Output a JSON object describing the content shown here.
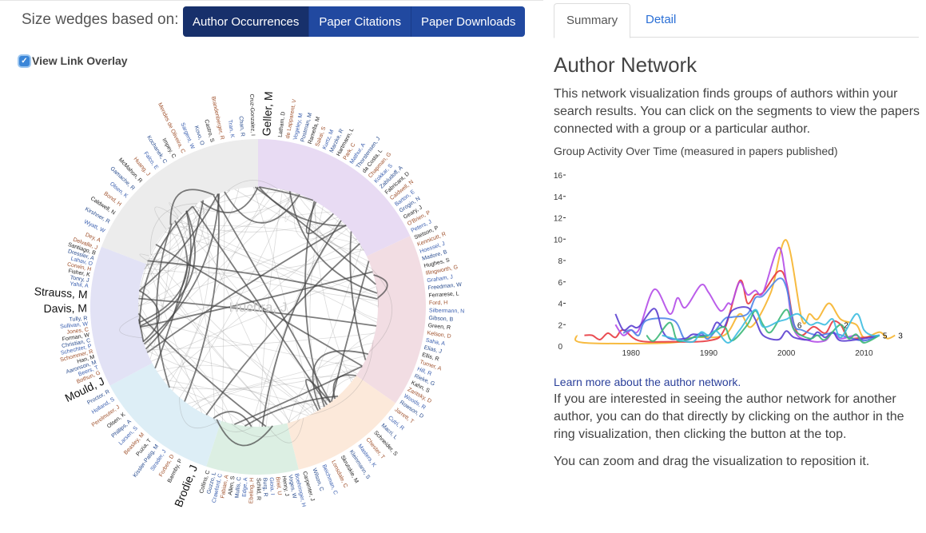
{
  "controls": {
    "size_label": "Size wedges based on:",
    "buttons": [
      {
        "label": "Author Occurrences",
        "active": true
      },
      {
        "label": "Paper Citations",
        "active": false
      },
      {
        "label": "Paper Downloads",
        "active": false
      }
    ],
    "overlay_label": "View Link Overlay",
    "overlay_checked": true,
    "check_glyph": "✓"
  },
  "ring": {
    "center_label": "Huchra, J",
    "groups": [
      {
        "color": "#e8dbf3",
        "start": 0,
        "end": 65,
        "authors": [
          "Geller, M",
          "Latham, D",
          "de Lapparent, V",
          "Vogeley, M",
          "Postman, M",
          "Ramella, M",
          "Sakai, S",
          "Kurtz, M",
          "Marzke, R",
          "Hartmann, L",
          "Park, C",
          "Mathur, A",
          "Thorstensen, J",
          "da Costa, L",
          "Chapman, G",
          "Kokkar, S",
          "Zabludoff, A",
          "Fabricant, D",
          "Caldwell, N",
          "Barton, E",
          "Grogin, N",
          "Geary, J",
          "O'Brien, P",
          "Peters, J"
        ],
        "big": [
          "Geller, M"
        ]
      },
      {
        "color": "#f2dde3",
        "start": 65,
        "end": 125,
        "authors": [
          "Stetson, P",
          "Kennicutt, R",
          "Hoessel, J",
          "Madore, B",
          "Hughes, S",
          "Illingworth, G",
          "Graham, J",
          "Freedman, W",
          "Ferrarese, L",
          "Ford, H",
          "Silbermann, N",
          "Gibson, B",
          "Green, R",
          "Kelson, D",
          "Saha, A",
          "Elias, J",
          "Ellis, R",
          "Turner, A",
          "Hill, R",
          "Rieke, G",
          "Kahn, S",
          "Zaritsky, D",
          "Woods, R",
          "Rowson, D"
        ],
        "big": []
      },
      {
        "color": "#fce9da",
        "start": 125,
        "end": 166,
        "authors": [
          "Jarrett, T",
          "Cutri, R",
          "Macri, L",
          "Schneider, S",
          "Chester, T",
          "Masters, K",
          "Kleinmann, S",
          "Skrutskie, M",
          "Lonsdale, C",
          "Beichman, C",
          "Wilson, C",
          "Carpenter, J"
        ],
        "big": []
      },
      {
        "color": "#dcefe3",
        "start": 166,
        "end": 198,
        "authors": [
          "Boehringer, H",
          "Voges, W",
          "Henry, J",
          "Briel, U",
          "Gioia, I",
          "Burg, R",
          "Schild, R",
          "Ebeling, H",
          "Edge, A",
          "Mullis, C",
          "Allen, S",
          "Fabian, A",
          "Crawford, C",
          "Guzzo, L",
          "Collins, C"
        ],
        "big": []
      },
      {
        "color": "#ddeef6",
        "start": 198,
        "end": 242,
        "authors": [
          "Brodie, J",
          "Barmby, P",
          "Forbes, D",
          "Strader, J",
          "Kissler-Patig, M",
          "Puzia, T",
          "Beasley, M",
          "Larsen, S",
          "Phillips, A",
          "Olsen, K",
          "Perelmuter, J",
          "Holland, S",
          "Proctor, R"
        ],
        "big": [
          "Brodie, J"
        ]
      },
      {
        "color": "#e2e2f5",
        "start": 242,
        "end": 291,
        "authors": [
          "Mould, J",
          "Bothun, G",
          "Beers, T",
          "Aaronson, M",
          "Han, M",
          "Schommer, R",
          "Schechter, P",
          "Christian, C",
          "Forman, W",
          "Jones, C",
          "Sullivan, W",
          "Tully, R",
          "Davis, M",
          "Strauss, M",
          "Yahil, A",
          "Tonry, J",
          "Fisher, K",
          "Corwin, H",
          "Lahav, O",
          "Dressler, A",
          "Santiago, B",
          "Delvalle, J"
        ],
        "big": [
          "Mould, J",
          "Davis, M",
          "Strauss, M"
        ]
      },
      {
        "color": "#ececec",
        "start": 291,
        "end": 360,
        "authors": [
          "Dey, A",
          "Wyatt, W",
          "Kirshner, R",
          "Caldwell, N",
          "Bond, H",
          "Olsen, K",
          "Gamache, R",
          "McMahon, R",
          "Huang, J",
          "Falco, E",
          "Kochanek, C",
          "Impey, C",
          "Mendes de Oliveira, C",
          "Sargent, W",
          "Kovo, O",
          "Castro, S",
          "Brandenberger, R",
          "Tran, K",
          "Chan, R",
          "Cruz-Gonzalez, I"
        ],
        "big": []
      }
    ]
  },
  "panel": {
    "tabs": [
      {
        "label": "Summary",
        "active": true
      },
      {
        "label": "Detail",
        "active": false
      }
    ],
    "title": "Author Network",
    "intro": "This network visualization finds groups of authors within your search results. You can click on the segments to view the papers connected with a group or a particular author.",
    "chart_caption": "Group Activity Over Time (measured in papers published)",
    "learn_link": "Learn more about the author network.",
    "more_text": "If you are interested in seeing the author network for another author, you can do that directly by clicking on the author in the ring visualization, then clicking the button at the top.",
    "zoom_text": "You can zoom and drag the visualization to reposition it."
  },
  "chart_data": {
    "type": "line",
    "xlim": [
      1972,
      2015
    ],
    "ylim": [
      0,
      16
    ],
    "xticks": [
      1980,
      1990,
      2000,
      2010
    ],
    "yticks": [
      0,
      2,
      4,
      6,
      8,
      10,
      12,
      14,
      16
    ],
    "series": [
      {
        "color": "#f6b42c",
        "x": [
          1973,
          1974,
          1985,
          1988,
          1992,
          1994,
          1995.5,
          1998,
          2000,
          2002,
          2003,
          2004,
          2005.5,
          2007,
          2009,
          2010,
          2012,
          2013,
          2014
        ],
        "y": [
          1,
          0.3,
          0.3,
          0.8,
          1,
          3,
          1.8,
          5,
          9.9,
          2.5,
          3,
          2.5,
          4,
          2.5,
          2,
          0.8,
          1.3,
          0.7,
          1
        ],
        "end_label": "3"
      },
      {
        "color": "#e8393f",
        "x": [
          1974,
          1975,
          1976,
          1977,
          1978,
          1979,
          1981,
          1985,
          1990,
          1992,
          1994,
          1995,
          1996,
          1997,
          1999,
          2000,
          2001,
          2002,
          2003.5,
          2005,
          2006,
          2007,
          2008,
          2010,
          2012
        ],
        "y": [
          1,
          1,
          0.6,
          1.2,
          0.8,
          1.5,
          0.5,
          0.4,
          0.5,
          1.5,
          6.1,
          4,
          4.8,
          5,
          7,
          6,
          2,
          1,
          1.8,
          1.2,
          2.3,
          2,
          0.8,
          0.8,
          1
        ],
        "end_label": "2",
        "label_x": 2007
      },
      {
        "color": "#b44de8",
        "x": [
          1978,
          1979,
          1980,
          1981,
          1983,
          1985,
          1986,
          1987,
          1989,
          1990,
          1991.5,
          1992.5,
          1993,
          1994,
          1995,
          1996,
          1997,
          1999,
          2000,
          2001,
          2003,
          2005,
          2006,
          2007,
          2009,
          2010,
          2012
        ],
        "y": [
          2,
          1,
          1.5,
          1.5,
          5.3,
          3,
          4.5,
          3.6,
          5.7,
          5,
          3.3,
          4,
          4,
          6,
          4.8,
          5.2,
          5,
          9.2,
          6,
          1.5,
          0.5,
          0.5,
          1.3,
          0.7,
          1,
          0.5,
          1
        ]
      },
      {
        "color": "#4f86e8",
        "x": [
          1979,
          1980,
          1981,
          1982,
          1985.5,
          1987,
          1989,
          1990,
          1992,
          1993,
          1995,
          1996,
          1997,
          1999,
          2000,
          2001,
          2002,
          2004,
          2006,
          2008,
          2010,
          2012
        ],
        "y": [
          1.2,
          1.5,
          1,
          2.4,
          2.4,
          0.6,
          1.2,
          0.7,
          2.5,
          2.7,
          3,
          4.5,
          4.7,
          6.3,
          5.5,
          2,
          1.5,
          1,
          1.2,
          0.8,
          0.5,
          1
        ],
        "end_label": "6",
        "label_x": 2001
      },
      {
        "color": "#5b3fd0",
        "x": [
          1978,
          1979,
          1980,
          1981,
          1983,
          1984,
          1985,
          1987,
          1988,
          1990,
          1991,
          1992,
          1993,
          1995,
          1996,
          1997,
          1999,
          2000,
          2001,
          2003,
          2004,
          2005,
          2006,
          2007,
          2010,
          2012
        ],
        "y": [
          3,
          1.5,
          1.9,
          1.8,
          3.5,
          1.5,
          0.7,
          0.7,
          1.1,
          1,
          2.2,
          1.8,
          3.3,
          3.6,
          2.5,
          1,
          0.6,
          1.4,
          0.8,
          0.6,
          1.3,
          0.8,
          1.3,
          0.5,
          0.7,
          1
        ],
        "end_label": "5"
      },
      {
        "color": "#3cb878",
        "x": [
          1982,
          1983,
          1985,
          1986,
          1988,
          1990,
          1992,
          1993,
          1995,
          1996,
          1997,
          1998,
          2000,
          2001,
          2003,
          2004,
          2005,
          2007,
          2008,
          2009,
          2010,
          2012
        ],
        "y": [
          1,
          0.5,
          2.2,
          0.5,
          0.8,
          1,
          1.8,
          0.5,
          2,
          3.3,
          2,
          1.3,
          3.4,
          1.5,
          0.7,
          1,
          0.6,
          2,
          0.7,
          1.1,
          0.3,
          1
        ]
      },
      {
        "color": "#3dbde0",
        "x": [
          1984,
          1986,
          1988,
          1989,
          1990,
          1991,
          1992.5,
          1994,
          1996,
          1997,
          1999,
          2000,
          2001.5,
          2003,
          2004,
          2005,
          2006,
          2007,
          2009,
          2010,
          2011,
          2012
        ],
        "y": [
          1,
          0.6,
          0.4,
          1.3,
          1,
          1.4,
          0.3,
          1.5,
          3.4,
          1.8,
          2.3,
          2.5,
          3,
          2,
          2.2,
          2,
          2.5,
          0.8,
          3,
          1.5,
          1,
          1
        ]
      }
    ]
  }
}
